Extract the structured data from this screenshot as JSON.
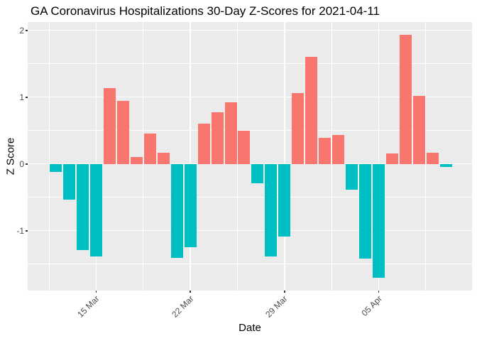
{
  "title": "GA Coronavirus Hospitalizations 30-Day Z-Scores for 2021-04-11",
  "chart_data": {
    "type": "bar",
    "title": "GA Coronavirus Hospitalizations 30-Day Z-Scores for 2021-04-11",
    "xlabel": "Date",
    "ylabel": "Z Score",
    "dates": [
      "2021-03-12",
      "2021-03-13",
      "2021-03-14",
      "2021-03-15",
      "2021-03-16",
      "2021-03-17",
      "2021-03-18",
      "2021-03-19",
      "2021-03-20",
      "2021-03-21",
      "2021-03-22",
      "2021-03-23",
      "2021-03-24",
      "2021-03-25",
      "2021-03-26",
      "2021-03-27",
      "2021-03-28",
      "2021-03-29",
      "2021-03-30",
      "2021-03-31",
      "2021-04-01",
      "2021-04-02",
      "2021-04-03",
      "2021-04-04",
      "2021-04-05",
      "2021-04-06",
      "2021-04-07",
      "2021-04-08",
      "2021-04-09",
      "2021-04-10"
    ],
    "values": [
      -0.12,
      -0.53,
      -1.29,
      -1.39,
      1.14,
      0.94,
      0.1,
      0.45,
      0.17,
      -1.41,
      -1.25,
      0.6,
      0.77,
      0.92,
      0.5,
      -0.29,
      -1.39,
      -1.09,
      1.06,
      1.6,
      0.39,
      0.43,
      -0.39,
      -1.42,
      -1.71,
      0.16,
      1.93,
      1.02,
      0.17,
      -0.05
    ],
    "ylim": [
      -1.9,
      2.13
    ],
    "y_major_ticks": [
      2,
      1,
      0,
      -1
    ],
    "y_minor_ticks": [
      1.5,
      0.5,
      -0.5,
      -1.5
    ],
    "x_ticks": [
      {
        "label": "15 Mar",
        "index": 3
      },
      {
        "label": "22 Mar",
        "index": 10
      },
      {
        "label": "29 Mar",
        "index": 17
      },
      {
        "label": "05 Apr",
        "index": 24
      }
    ],
    "x_minor_indices": [
      -0.5,
      6.5,
      13.5,
      20.5,
      27.5
    ],
    "legend_position": "none",
    "grid": "white major+minor on grey panel",
    "colors": {
      "positive": "#F8766D",
      "negative": "#00BFC4",
      "panel_bg": "#EBEBEB",
      "gridline": "#FFFFFF",
      "tick_text": "#4D4D4D",
      "tick_mark": "#333333"
    }
  }
}
